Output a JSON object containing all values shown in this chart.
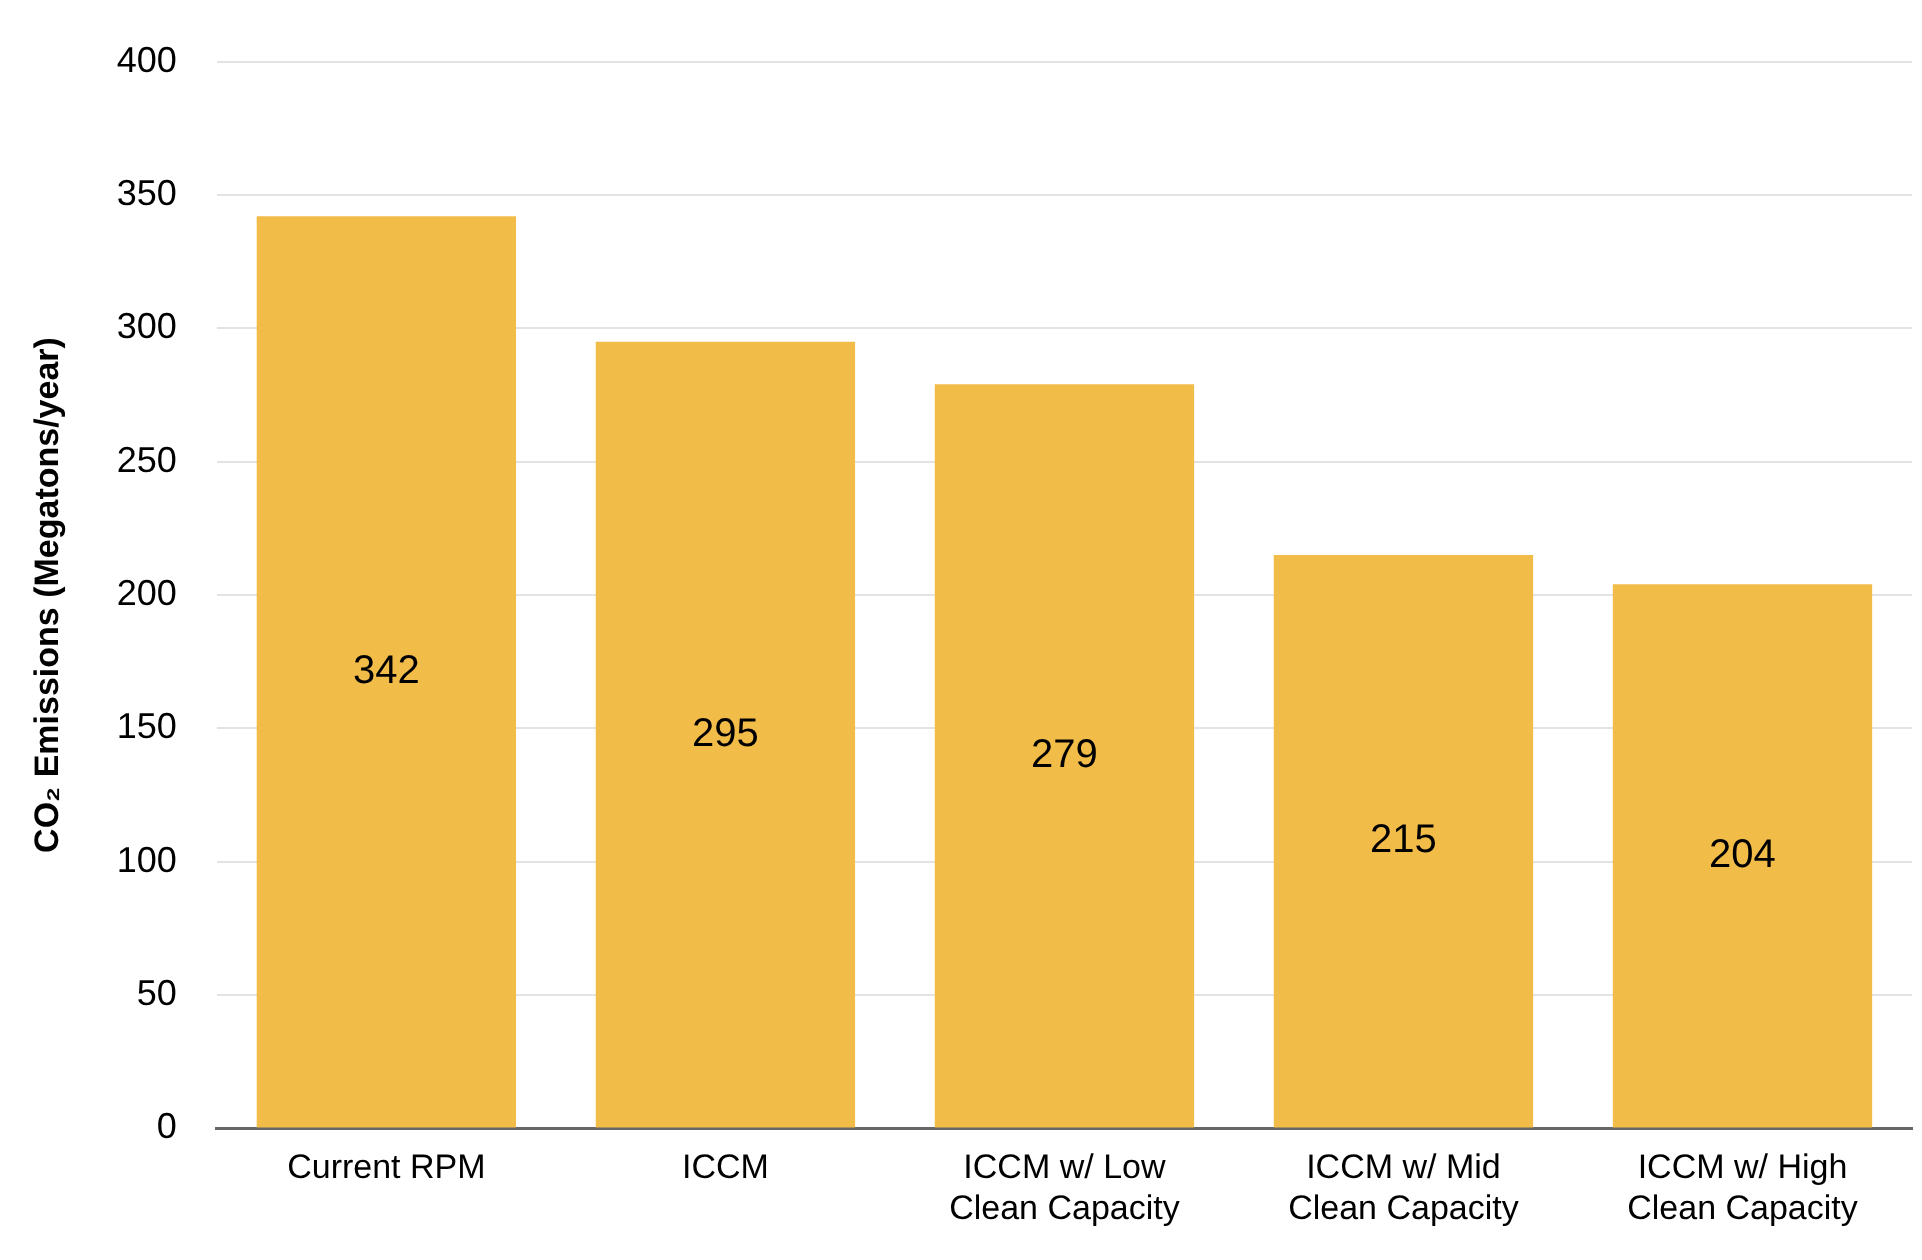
{
  "chart_data": {
    "type": "bar",
    "ylabel": "CO₂ Emissions (Megatons/year)",
    "categories": [
      "Current RPM",
      "ICCM",
      "ICCM w/ Low Clean Capacity",
      "ICCM w/ Mid Clean Capacity",
      "ICCM w/ High Clean Capacity"
    ],
    "values": [
      342,
      295,
      279,
      215,
      204
    ],
    "color": "#f2bc48",
    "ylim": [
      0,
      400
    ],
    "yticks": [
      0,
      50,
      100,
      150,
      200,
      250,
      300,
      350,
      400
    ],
    "grid": "y",
    "data_labels": true
  }
}
